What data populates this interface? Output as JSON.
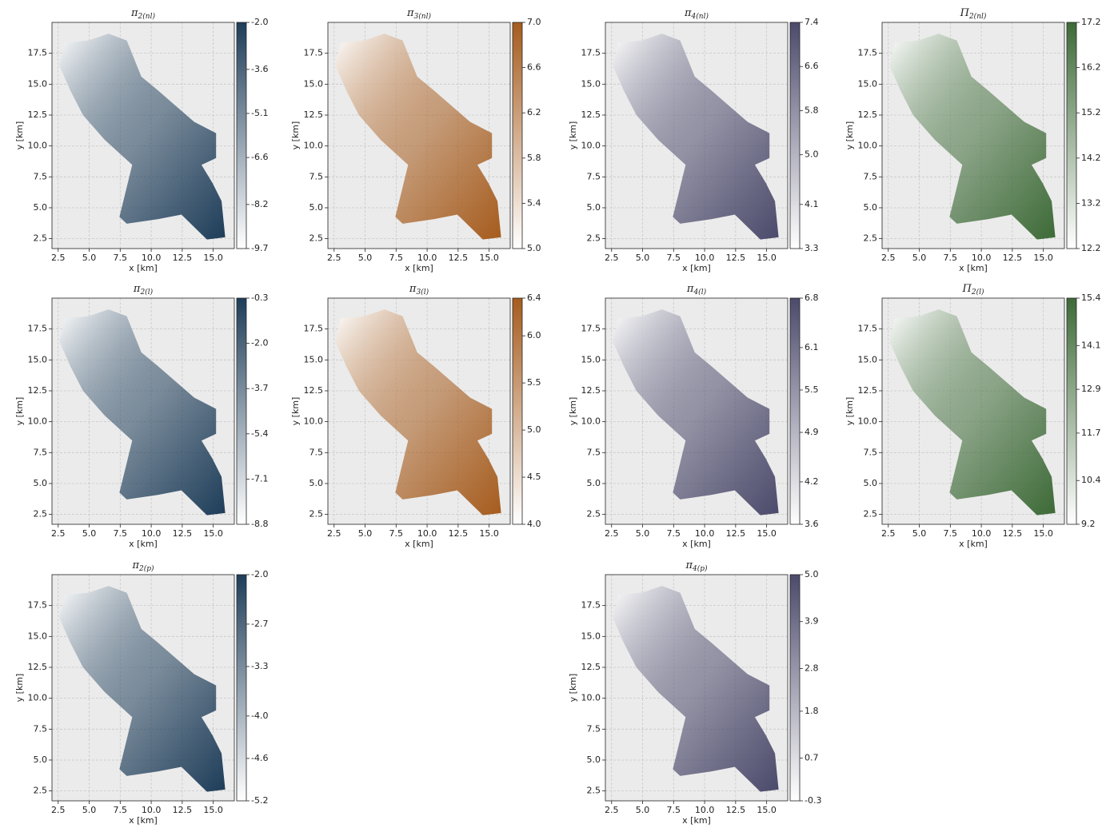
{
  "chart_data": [
    {
      "type": "heatmap",
      "title": "π",
      "title_sub": "2(nl)",
      "xlabel": "x [km]",
      "ylabel": "y [km]",
      "xlim": [
        2.0,
        16.7
      ],
      "ylim": [
        1.7,
        20.0
      ],
      "xticks": [
        2.5,
        {
          "value": 5,
          "label": "5.0"
        },
        7.5,
        {
          "value": 10,
          "label": "10.0"
        },
        12.5,
        {
          "value": 15,
          "label": "15.0"
        }
      ],
      "yticks": [
        2.5,
        {
          "value": 5,
          "label": "5.0"
        },
        7.5,
        {
          "value": 10,
          "label": "10.0"
        },
        12.5,
        {
          "value": 15,
          "label": "15.0"
        },
        17.5
      ],
      "grid": true,
      "colorbar": {
        "lim": [
          -9.7,
          -2.0
        ],
        "ticks": [
          -9.7,
          -8.2,
          -6.6,
          -5.1,
          -3.6,
          {
            "value": -2,
            "label": "-2.0"
          }
        ],
        "color": "#1e3d59"
      }
    },
    {
      "type": "heatmap",
      "title": "π",
      "title_sub": "3(nl)",
      "xlabel": "x [km]",
      "ylabel": "y [km]",
      "xlim": [
        2.0,
        16.7
      ],
      "ylim": [
        1.7,
        20.0
      ],
      "xticks": [
        2.5,
        {
          "value": 5,
          "label": "5.0"
        },
        7.5,
        {
          "value": 10,
          "label": "10.0"
        },
        12.5,
        {
          "value": 15,
          "label": "15.0"
        }
      ],
      "yticks": [
        2.5,
        {
          "value": 5,
          "label": "5.0"
        },
        7.5,
        {
          "value": 10,
          "label": "10.0"
        },
        12.5,
        {
          "value": 15,
          "label": "15.0"
        },
        17.5
      ],
      "grid": true,
      "colorbar": {
        "lim": [
          5.0,
          7.0
        ],
        "ticks": [
          {
            "value": 5,
            "label": "5.0"
          },
          5.4,
          5.8,
          6.2,
          6.6,
          {
            "value": 7,
            "label": "7.0"
          }
        ],
        "color": "#a65c1e"
      }
    },
    {
      "type": "heatmap",
      "title": "π",
      "title_sub": "4(nl)",
      "xlabel": "x [km]",
      "ylabel": "y [km]",
      "xlim": [
        2.0,
        16.7
      ],
      "ylim": [
        1.7,
        20.0
      ],
      "xticks": [
        2.5,
        {
          "value": 5,
          "label": "5.0"
        },
        7.5,
        {
          "value": 10,
          "label": "10.0"
        },
        12.5,
        {
          "value": 15,
          "label": "15.0"
        }
      ],
      "yticks": [
        2.5,
        {
          "value": 5,
          "label": "5.0"
        },
        7.5,
        {
          "value": 10,
          "label": "10.0"
        },
        12.5,
        {
          "value": 15,
          "label": "15.0"
        },
        17.5
      ],
      "grid": true,
      "colorbar": {
        "lim": [
          3.3,
          7.4
        ],
        "ticks": [
          3.3,
          4.1,
          {
            "value": 5,
            "label": "5.0"
          },
          5.8,
          6.6,
          7.4
        ],
        "color": "#4b4a6b"
      }
    },
    {
      "type": "heatmap",
      "title": "Π",
      "title_sub": "2(nl)",
      "xlabel": "x [km]",
      "ylabel": "y [km]",
      "xlim": [
        2.0,
        16.7
      ],
      "ylim": [
        1.7,
        20.0
      ],
      "xticks": [
        2.5,
        {
          "value": 5,
          "label": "5.0"
        },
        7.5,
        {
          "value": 10,
          "label": "10.0"
        },
        12.5,
        {
          "value": 15,
          "label": "15.0"
        }
      ],
      "yticks": [
        2.5,
        {
          "value": 5,
          "label": "5.0"
        },
        7.5,
        {
          "value": 10,
          "label": "10.0"
        },
        12.5,
        {
          "value": 15,
          "label": "15.0"
        },
        17.5
      ],
      "grid": true,
      "colorbar": {
        "lim": [
          12.2,
          17.2
        ],
        "ticks": [
          12.2,
          13.2,
          14.2,
          15.2,
          16.2,
          17.2
        ],
        "color": "#3d6a37"
      }
    },
    {
      "type": "heatmap",
      "title": "π",
      "title_sub": "2(l)",
      "xlabel": "x [km]",
      "ylabel": "y [km]",
      "xlim": [
        2.0,
        16.7
      ],
      "ylim": [
        1.7,
        20.0
      ],
      "xticks": [
        2.5,
        {
          "value": 5,
          "label": "5.0"
        },
        7.5,
        {
          "value": 10,
          "label": "10.0"
        },
        12.5,
        {
          "value": 15,
          "label": "15.0"
        }
      ],
      "yticks": [
        2.5,
        {
          "value": 5,
          "label": "5.0"
        },
        7.5,
        {
          "value": 10,
          "label": "10.0"
        },
        12.5,
        {
          "value": 15,
          "label": "15.0"
        },
        17.5
      ],
      "grid": true,
      "colorbar": {
        "lim": [
          -8.8,
          -0.3
        ],
        "ticks": [
          -8.8,
          -7.1,
          -5.4,
          -3.7,
          {
            "value": -2,
            "label": "-2.0"
          },
          -0.3
        ],
        "color": "#1e3d59"
      }
    },
    {
      "type": "heatmap",
      "title": "π",
      "title_sub": "3(l)",
      "xlabel": "x [km]",
      "ylabel": "y [km]",
      "xlim": [
        2.0,
        16.7
      ],
      "ylim": [
        1.7,
        20.0
      ],
      "xticks": [
        2.5,
        {
          "value": 5,
          "label": "5.0"
        },
        7.5,
        {
          "value": 10,
          "label": "10.0"
        },
        12.5,
        {
          "value": 15,
          "label": "15.0"
        }
      ],
      "yticks": [
        2.5,
        {
          "value": 5,
          "label": "5.0"
        },
        7.5,
        {
          "value": 10,
          "label": "10.0"
        },
        12.5,
        {
          "value": 15,
          "label": "15.0"
        },
        17.5
      ],
      "grid": true,
      "colorbar": {
        "lim": [
          4.0,
          6.4
        ],
        "ticks": [
          {
            "value": 4,
            "label": "4.0"
          },
          4.5,
          {
            "value": 5,
            "label": "5.0"
          },
          5.5,
          {
            "value": 6,
            "label": "6.0"
          },
          6.4
        ],
        "color": "#a65c1e"
      }
    },
    {
      "type": "heatmap",
      "title": "π",
      "title_sub": "4(l)",
      "xlabel": "x [km]",
      "ylabel": "y [km]",
      "xlim": [
        2.0,
        16.7
      ],
      "ylim": [
        1.7,
        20.0
      ],
      "xticks": [
        2.5,
        {
          "value": 5,
          "label": "5.0"
        },
        7.5,
        {
          "value": 10,
          "label": "10.0"
        },
        12.5,
        {
          "value": 15,
          "label": "15.0"
        }
      ],
      "yticks": [
        2.5,
        {
          "value": 5,
          "label": "5.0"
        },
        7.5,
        {
          "value": 10,
          "label": "10.0"
        },
        12.5,
        {
          "value": 15,
          "label": "15.0"
        },
        17.5
      ],
      "grid": true,
      "colorbar": {
        "lim": [
          3.6,
          6.8
        ],
        "ticks": [
          3.6,
          4.2,
          4.9,
          5.5,
          6.1,
          6.8
        ],
        "color": "#4b4a6b"
      }
    },
    {
      "type": "heatmap",
      "title": "Π",
      "title_sub": "2(l)",
      "xlabel": "x [km]",
      "ylabel": "y [km]",
      "xlim": [
        2.0,
        16.7
      ],
      "ylim": [
        1.7,
        20.0
      ],
      "xticks": [
        2.5,
        {
          "value": 5,
          "label": "5.0"
        },
        7.5,
        {
          "value": 10,
          "label": "10.0"
        },
        12.5,
        {
          "value": 15,
          "label": "15.0"
        }
      ],
      "yticks": [
        2.5,
        {
          "value": 5,
          "label": "5.0"
        },
        7.5,
        {
          "value": 10,
          "label": "10.0"
        },
        12.5,
        {
          "value": 15,
          "label": "15.0"
        },
        17.5
      ],
      "grid": true,
      "colorbar": {
        "lim": [
          9.2,
          15.4
        ],
        "ticks": [
          9.2,
          10.4,
          11.7,
          12.9,
          14.1,
          15.4
        ],
        "color": "#3d6a37"
      }
    },
    {
      "type": "heatmap",
      "title": "π",
      "title_sub": "2(p)",
      "xlabel": "x [km]",
      "ylabel": "y [km]",
      "xlim": [
        2.0,
        16.7
      ],
      "ylim": [
        1.7,
        20.0
      ],
      "xticks": [
        2.5,
        {
          "value": 5,
          "label": "5.0"
        },
        7.5,
        {
          "value": 10,
          "label": "10.0"
        },
        12.5,
        {
          "value": 15,
          "label": "15.0"
        }
      ],
      "yticks": [
        2.5,
        {
          "value": 5,
          "label": "5.0"
        },
        7.5,
        {
          "value": 10,
          "label": "10.0"
        },
        12.5,
        {
          "value": 15,
          "label": "15.0"
        },
        17.5
      ],
      "grid": true,
      "colorbar": {
        "lim": [
          -5.2,
          -2.0
        ],
        "ticks": [
          -5.2,
          -4.6,
          {
            "value": -4,
            "label": "-4.0"
          },
          -3.3,
          -2.7,
          {
            "value": -2,
            "label": "-2.0"
          }
        ],
        "color": "#1e3d59"
      }
    },
    {
      "type": "heatmap",
      "title": "π",
      "title_sub": "4(p)",
      "xlabel": "x [km]",
      "ylabel": "y [km]",
      "xlim": [
        2.0,
        16.7
      ],
      "ylim": [
        1.7,
        20.0
      ],
      "xticks": [
        2.5,
        {
          "value": 5,
          "label": "5.0"
        },
        7.5,
        {
          "value": 10,
          "label": "10.0"
        },
        12.5,
        {
          "value": 15,
          "label": "15.0"
        }
      ],
      "yticks": [
        2.5,
        {
          "value": 5,
          "label": "5.0"
        },
        7.5,
        {
          "value": 10,
          "label": "10.0"
        },
        12.5,
        {
          "value": 15,
          "label": "15.0"
        },
        17.5
      ],
      "grid": true,
      "colorbar": {
        "lim": [
          -0.3,
          5.0
        ],
        "ticks": [
          -0.3,
          0.7,
          1.8,
          2.8,
          3.9,
          {
            "value": 5,
            "label": "5.0"
          }
        ],
        "color": "#4b4a6b"
      }
    }
  ]
}
